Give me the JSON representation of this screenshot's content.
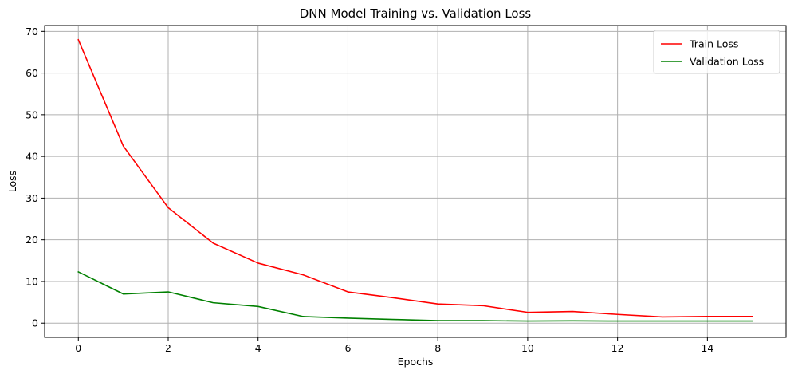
{
  "chart_data": {
    "type": "line",
    "title": "DNN Model Training vs. Validation Loss",
    "xlabel": "Epochs",
    "ylabel": "Loss",
    "x": [
      0,
      1,
      2,
      3,
      4,
      5,
      6,
      7,
      8,
      9,
      10,
      11,
      12,
      13,
      14,
      15
    ],
    "xlim": [
      -0.75,
      15.75
    ],
    "ylim": [
      -3.4,
      71.4
    ],
    "xticks": [
      0,
      2,
      4,
      6,
      8,
      10,
      12,
      14
    ],
    "yticks": [
      0,
      10,
      20,
      30,
      40,
      50,
      60,
      70
    ],
    "grid": true,
    "legend_position": "top-right",
    "series": [
      {
        "name": "Train Loss",
        "color": "#ff0000",
        "values": [
          68.0,
          42.5,
          27.7,
          19.2,
          14.4,
          11.6,
          7.5,
          6.1,
          4.6,
          4.2,
          2.6,
          2.8,
          2.1,
          1.5,
          1.6,
          1.6
        ]
      },
      {
        "name": "Validation Loss",
        "color": "#008000",
        "values": [
          12.3,
          7.0,
          7.5,
          4.9,
          4.0,
          1.6,
          1.2,
          0.9,
          0.6,
          0.6,
          0.5,
          0.55,
          0.5,
          0.5,
          0.5,
          0.5
        ]
      }
    ]
  }
}
